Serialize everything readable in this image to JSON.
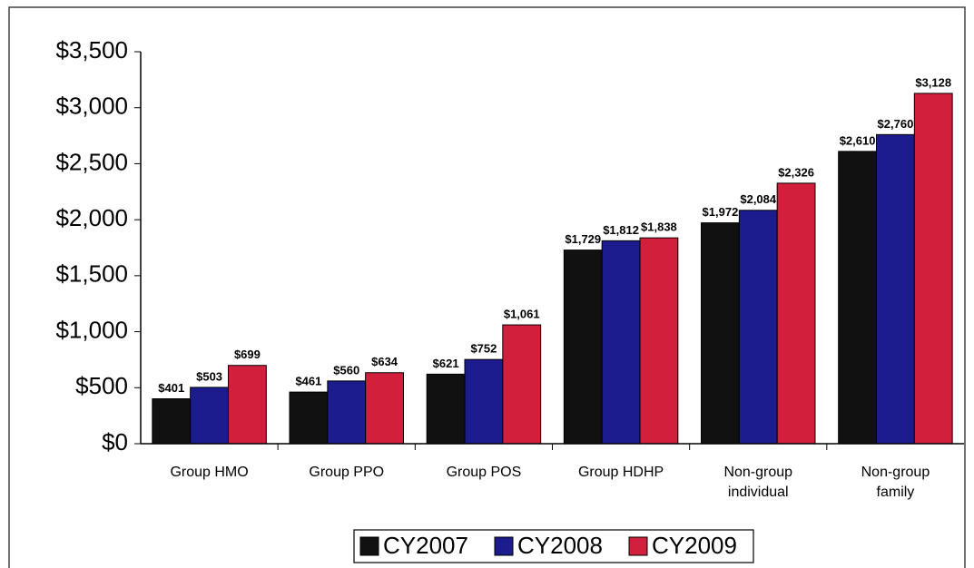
{
  "chart_data": {
    "type": "bar",
    "categories": [
      "Group HMO",
      "Group PPO",
      "Group POS",
      "Group HDHP",
      "Non-group individual",
      "Non-group family"
    ],
    "series": [
      {
        "name": "CY2007",
        "color": "#111111",
        "values": [
          401,
          461,
          621,
          1729,
          1972,
          2610
        ],
        "value_labels": [
          "$401",
          "$461",
          "$621",
          "$1,729",
          "$1,972",
          "$2,610"
        ]
      },
      {
        "name": "CY2008",
        "color": "#1c1c8e",
        "values": [
          503,
          560,
          752,
          1812,
          2084,
          2760
        ],
        "value_labels": [
          "$503",
          "$560",
          "$752",
          "$1,812",
          "$2,084",
          "$2,760"
        ]
      },
      {
        "name": "CY2009",
        "color": "#d21f3c",
        "values": [
          699,
          634,
          1061,
          1838,
          2326,
          3128
        ],
        "value_labels": [
          "$699",
          "$634",
          "$1,061",
          "$1,838",
          "$2,326",
          "$3,128"
        ]
      }
    ],
    "ylim": [
      0,
      3500
    ],
    "yticks": [
      {
        "value": 0,
        "label": "$0"
      },
      {
        "value": 500,
        "label": "$500"
      },
      {
        "value": 1000,
        "label": "$1,000"
      },
      {
        "value": 1500,
        "label": "$1,500"
      },
      {
        "value": 2000,
        "label": "$2,000"
      },
      {
        "value": 2500,
        "label": "$2,500"
      },
      {
        "value": 3000,
        "label": "$3,000"
      },
      {
        "value": 3500,
        "label": "$3,500"
      }
    ],
    "legend": "bottom"
  }
}
